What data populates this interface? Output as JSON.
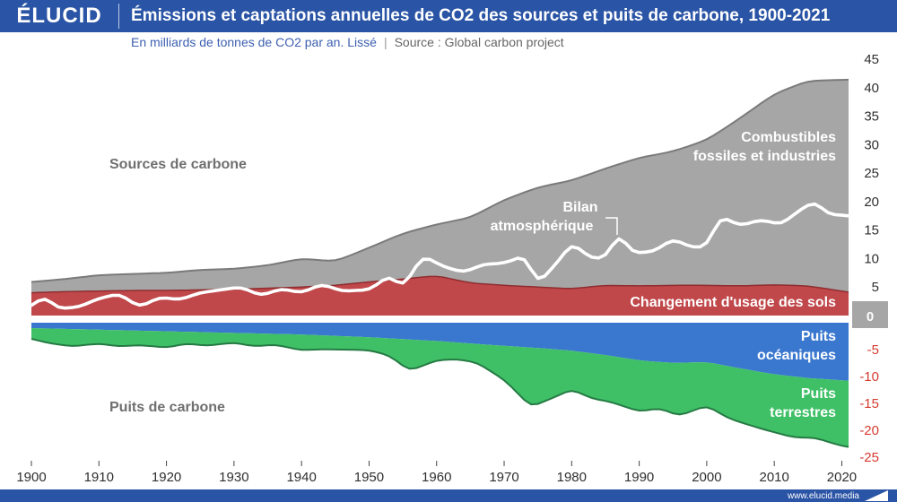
{
  "header": {
    "logo": "ÉLUCID",
    "title": "Émissions et captations annuelles de CO2 des sources et puits de carbone, 1900-2021",
    "subtitle_unit": "En milliards de tonnes de CO2 par an. Lissé",
    "subtitle_sep": "|",
    "subtitle_source": "Source : Global carbon project"
  },
  "footer": {
    "site": "www.elucid.media"
  },
  "colors": {
    "brand": "#2a54a5",
    "fossil": "#a6a6a6",
    "land_use": "#c0474a",
    "ocean": "#3a78cf",
    "land_sink": "#3fc067",
    "atmosphere": "#ffffff",
    "negative_tick": "#d63b2f",
    "positive_tick": "#2f2f2f"
  },
  "chart_data": {
    "type": "area",
    "title": "Émissions et captations annuelles de CO2 des sources et puits de carbone, 1900-2021",
    "ylabel": "En milliards de tonnes de CO2 par an. Lissé",
    "xlim": [
      1900,
      2021
    ],
    "ylim": [
      -25,
      45
    ],
    "x_ticks": [
      1900,
      1910,
      1920,
      1930,
      1940,
      1950,
      1960,
      1970,
      1980,
      1990,
      2000,
      2010,
      2020
    ],
    "y_ticks": [
      -25,
      -20,
      -15,
      -10,
      -5,
      0,
      5,
      10,
      15,
      20,
      25,
      30,
      35,
      40,
      45
    ],
    "group_labels": {
      "sources": "Sources de carbone",
      "sinks": "Puits de carbone"
    },
    "series": [
      {
        "name": "Combustibles fossiles et industries",
        "role": "source",
        "label_lines": [
          "Combustibles",
          "fossiles et industries"
        ],
        "x": [
          1900,
          1905,
          1910,
          1915,
          1920,
          1925,
          1930,
          1935,
          1940,
          1945,
          1950,
          1955,
          1960,
          1965,
          1970,
          1975,
          1980,
          1985,
          1990,
          1995,
          2000,
          2005,
          2010,
          2015,
          2021
        ],
        "values": [
          1.9,
          2.2,
          2.8,
          2.9,
          3.1,
          3.5,
          3.6,
          4.0,
          5.0,
          4.2,
          6.0,
          8.0,
          9.0,
          11.5,
          15.0,
          17.5,
          19.0,
          20.5,
          22.5,
          23.5,
          25.5,
          29.5,
          33.5,
          36.0,
          37.3
        ]
      },
      {
        "name": "Changement d'usage des sols",
        "role": "source",
        "label_lines": [
          "Changement d'usage des sols"
        ],
        "x": [
          1900,
          1905,
          1910,
          1915,
          1920,
          1925,
          1930,
          1935,
          1940,
          1945,
          1950,
          1955,
          1960,
          1965,
          1970,
          1975,
          1980,
          1985,
          1990,
          1995,
          2000,
          2005,
          2010,
          2015,
          2021
        ],
        "values": [
          4.0,
          4.2,
          4.3,
          4.4,
          4.4,
          4.5,
          4.6,
          4.8,
          5.0,
          5.3,
          5.9,
          6.4,
          7.0,
          5.7,
          5.3,
          5.0,
          4.7,
          5.3,
          5.2,
          5.3,
          5.3,
          5.2,
          5.4,
          5.2,
          4.1
        ]
      },
      {
        "name": "Puits océaniques",
        "role": "sink",
        "label_lines": [
          "Puits",
          "océaniques"
        ],
        "x": [
          1900,
          1910,
          1920,
          1930,
          1940,
          1950,
          1960,
          1970,
          1975,
          1980,
          1985,
          1990,
          1995,
          2000,
          2005,
          2010,
          2015,
          2021
        ],
        "values": [
          -1.0,
          -1.3,
          -1.6,
          -1.9,
          -2.2,
          -2.7,
          -3.4,
          -4.3,
          -4.7,
          -5.2,
          -6.0,
          -7.0,
          -7.5,
          -7.3,
          -8.5,
          -9.6,
          -10.3,
          -10.8
        ]
      },
      {
        "name": "Puits terrestres",
        "role": "sink",
        "label_lines": [
          "Puits",
          "terrestres"
        ],
        "x": [
          1900,
          1903,
          1906,
          1910,
          1913,
          1916,
          1920,
          1923,
          1926,
          1930,
          1933,
          1936,
          1940,
          1943,
          1946,
          1950,
          1953,
          1956,
          1960,
          1963,
          1966,
          1970,
          1974,
          1977,
          1980,
          1983,
          1986,
          1990,
          1993,
          1996,
          2000,
          2003,
          2006,
          2010,
          2013,
          2016,
          2020,
          2021
        ],
        "values": [
          -2.0,
          -2.8,
          -3.2,
          -2.6,
          -3.0,
          -2.7,
          -3.0,
          -2.2,
          -2.5,
          -1.8,
          -2.4,
          -2.0,
          -2.9,
          -2.6,
          -2.5,
          -2.4,
          -3.2,
          -5.8,
          -3.6,
          -3.1,
          -3.5,
          -6.3,
          -11.0,
          -9.2,
          -7.2,
          -8.4,
          -8.6,
          -9.5,
          -8.6,
          -9.8,
          -8.1,
          -9.6,
          -10.2,
          -10.8,
          -11.3,
          -11.0,
          -12.2,
          -12.3
        ]
      },
      {
        "name": "Bilan atmosphérique",
        "role": "balance",
        "label_lines": [
          "Bilan",
          "atmosphérique"
        ],
        "x": [
          1900,
          1902,
          1904,
          1907,
          1910,
          1913,
          1916,
          1919,
          1922,
          1925,
          1928,
          1931,
          1934,
          1937,
          1940,
          1943,
          1946,
          1950,
          1953,
          1955,
          1958,
          1961,
          1964,
          1967,
          1970,
          1973,
          1975,
          1978,
          1980,
          1983,
          1985,
          1987,
          1989,
          1992,
          1995,
          1998,
          2000,
          2002,
          2005,
          2008,
          2011,
          2014,
          2016,
          2018,
          2021
        ],
        "values": [
          1.8,
          3.3,
          1.2,
          1.5,
          3.0,
          3.8,
          1.5,
          3.2,
          2.8,
          4.0,
          4.5,
          5.0,
          3.5,
          4.7,
          4.0,
          5.5,
          4.3,
          4.5,
          7.0,
          5.0,
          10.5,
          8.6,
          7.6,
          9.0,
          9.2,
          10.5,
          5.6,
          9.5,
          12.7,
          10.0,
          10.2,
          14.4,
          11.0,
          11.2,
          13.4,
          11.9,
          12.2,
          17.4,
          15.8,
          16.8,
          16.0,
          18.7,
          20.0,
          17.8,
          17.5
        ]
      }
    ]
  }
}
